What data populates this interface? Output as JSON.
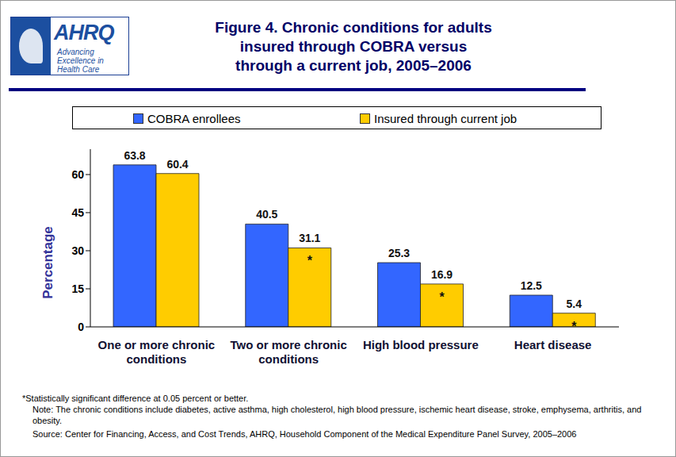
{
  "chart_data": {
    "type": "bar",
    "title": "Figure 4. Chronic conditions for adults\ninsured through COBRA versus\nthrough a current job, 2005–2006",
    "logo": {
      "name": "AHRQ",
      "tagline": "Advancing Excellence in Health Care"
    },
    "categories": [
      "One or more chronic conditions",
      "Two or more chronic conditions",
      "High blood pressure",
      "Heart disease"
    ],
    "series": [
      {
        "name": "COBRA enrollees",
        "color": "#3366ff",
        "values": [
          63.8,
          40.5,
          25.3,
          12.5
        ]
      },
      {
        "name": "Insured through current job",
        "color": "#ffcc00",
        "values": [
          60.4,
          31.1,
          16.9,
          5.4
        ],
        "significance": [
          false,
          true,
          true,
          true
        ]
      }
    ],
    "significance_mark": "*",
    "y_label": "Percentage",
    "ylim": [
      0,
      70
    ],
    "yticks": [
      0,
      15,
      30,
      45,
      60
    ],
    "data_labels": true,
    "grid": false,
    "footnotes": [
      "*Statistically significant difference at 0.05 percent or better.",
      "Note: The chronic conditions include diabetes, active asthma, high cholesterol, high blood pressure, ischemic heart disease, stroke, emphysema, arthritis, and obesity.",
      "Source: Center for Financing, Access, and Cost Trends, AHRQ, Household Component of the Medical Expenditure Panel Survey, 2005–2006"
    ]
  }
}
